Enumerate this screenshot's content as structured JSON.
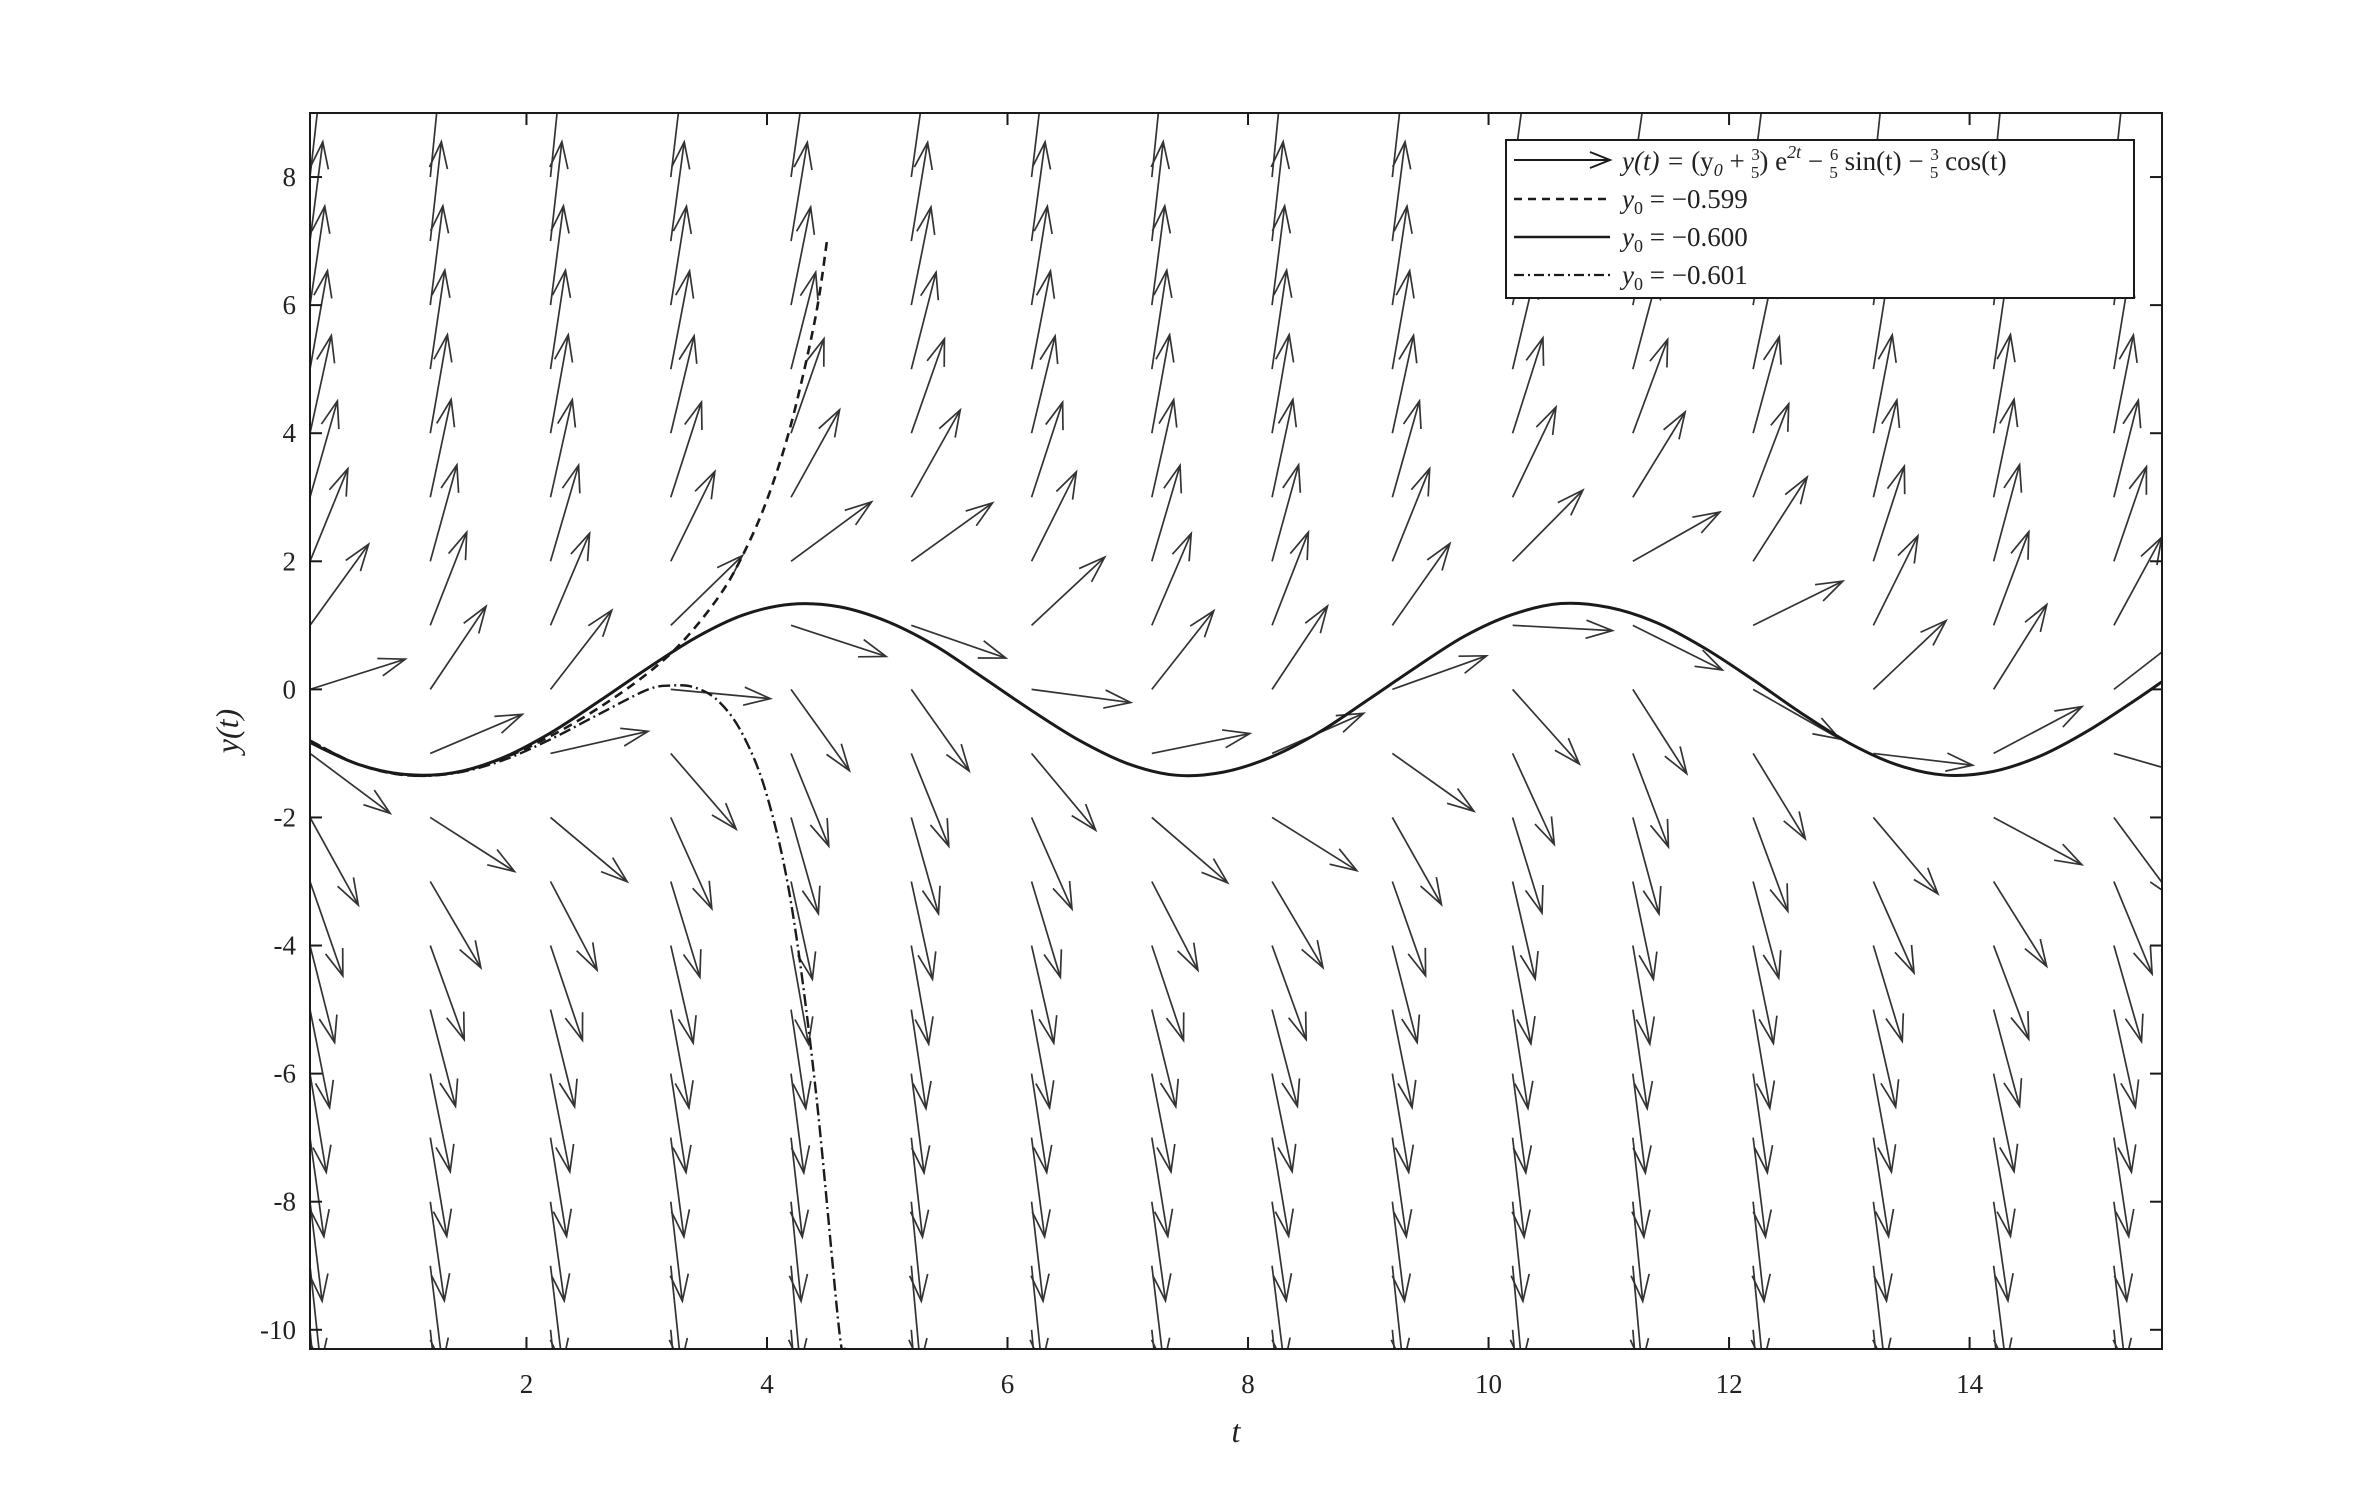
{
  "colors": {
    "ink": "#1a1a1a",
    "arrow": "#333333",
    "background": "#ffffff"
  },
  "chart_data": {
    "type": "line",
    "title": "",
    "xlabel": "t",
    "ylabel": "y(t)",
    "xlim": [
      0.2,
      15.6
    ],
    "ylim": [
      -10.3,
      9
    ],
    "xticks": [
      2,
      4,
      6,
      8,
      10,
      12,
      14
    ],
    "xtick_labels": [
      "2",
      "4",
      "6",
      "8",
      "10",
      "12",
      "14"
    ],
    "yticks": [
      8,
      6,
      4,
      2,
      0,
      -2,
      -4,
      -6,
      -8,
      -10
    ],
    "ytick_labels": [
      "8",
      "6",
      "4",
      "2",
      "0",
      "-2",
      "-4",
      "-6",
      "-8",
      "-10"
    ],
    "grid": false,
    "legend_position": "top-right",
    "legend": [
      {
        "label": "y(t) = (y₀ + 3/5) e^{2t} − 6/5 sin(t) − 3/5 cos(t)",
        "style": "arrow"
      },
      {
        "label": "y₀ = −0.599",
        "style": "dashed"
      },
      {
        "label": "y₀ = −0.600",
        "style": "solid"
      },
      {
        "label": "y₀ = −0.601",
        "style": "dashdot"
      }
    ],
    "legend_parts": {
      "formula_prefix": "y(t) = ",
      "formula_paren": "(y",
      "formula_sub0": "0",
      "formula_plus": " + ",
      "formula_35_num": "3",
      "formula_35_den": "5",
      "formula_close": ") e",
      "formula_exp": "2t",
      "formula_minus1": " − ",
      "formula_65_num": "6",
      "formula_65_den": "5",
      "formula_sin": " sin(t) − ",
      "formula_35b_num": "3",
      "formula_35b_den": "5",
      "formula_cos": " cos(t)",
      "y0_prefix": "y",
      "y0_sub": "0",
      "y0_eq_a": " = −0.599",
      "y0_eq_b": " = −0.600",
      "y0_eq_c": " = −0.601"
    },
    "direction_field": {
      "equation": "y' = 2y + 3 sin(t)",
      "t_values": [
        0.2,
        1.2,
        2.2,
        3.2,
        4.2,
        5.2,
        6.2,
        7.2,
        8.2,
        9.2,
        10.2,
        11.2,
        12.2,
        13.2,
        14.2,
        15.2
      ],
      "y_values": [
        -10,
        -9,
        -8,
        -7,
        -6,
        -5,
        -4,
        -3,
        -2,
        -1,
        0,
        1,
        2,
        3,
        4,
        5,
        6,
        7,
        8
      ]
    },
    "series": [
      {
        "name": "y₀ = −0.599",
        "style": "dashed",
        "x": [
          0.2,
          0.6,
          1.0,
          1.4,
          1.8,
          2.2,
          2.6,
          3.0,
          3.3,
          3.6,
          3.8,
          4.0,
          4.2,
          4.4,
          4.5
        ],
        "y": [
          -0.8,
          -1.17,
          -1.34,
          -1.3,
          -1.08,
          -0.73,
          -0.29,
          0.24,
          0.75,
          1.45,
          2.1,
          2.96,
          4.14,
          5.78,
          7.02
        ]
      },
      {
        "name": "y₀ = −0.600",
        "style": "solid",
        "x": [
          0.2,
          0.6,
          1.0,
          1.4,
          1.8,
          2.2,
          2.6,
          3.0,
          3.4,
          3.8,
          4.2,
          4.6,
          5.0,
          5.4,
          5.8,
          6.2,
          6.6,
          7.0,
          7.4,
          7.8,
          8.2,
          8.6,
          9.0,
          9.4,
          9.8,
          10.2,
          10.6,
          11.0,
          11.4,
          11.8,
          12.2,
          12.6,
          13.0,
          13.4,
          13.8,
          14.2,
          14.6,
          15.0,
          15.4,
          15.6
        ],
        "y": [
          -0.83,
          -1.17,
          -1.33,
          -1.3,
          -1.07,
          -0.68,
          -0.19,
          0.32,
          0.8,
          1.16,
          1.33,
          1.29,
          1.06,
          0.68,
          0.18,
          -0.33,
          -0.8,
          -1.16,
          -1.34,
          -1.29,
          -1.05,
          -0.66,
          -0.16,
          0.35,
          0.83,
          1.17,
          1.34,
          1.28,
          1.04,
          0.64,
          0.15,
          -0.37,
          -0.84,
          -1.18,
          -1.34,
          -1.28,
          -1.03,
          -0.63,
          -0.14,
          0.12
        ]
      },
      {
        "name": "y₀ = −0.601",
        "style": "dashdot",
        "x": [
          0.2,
          0.6,
          1.0,
          1.4,
          1.8,
          2.2,
          2.6,
          3.0,
          3.2,
          3.4,
          3.6,
          3.8,
          4.0,
          4.2,
          4.4,
          4.6,
          4.65
        ],
        "y": [
          -0.8,
          -1.17,
          -1.34,
          -1.31,
          -1.11,
          -0.78,
          -0.39,
          -0.01,
          0.06,
          0.03,
          -0.19,
          -0.71,
          -1.66,
          -3.33,
          -6.17,
          -10.0,
          -10.3
        ]
      }
    ]
  }
}
